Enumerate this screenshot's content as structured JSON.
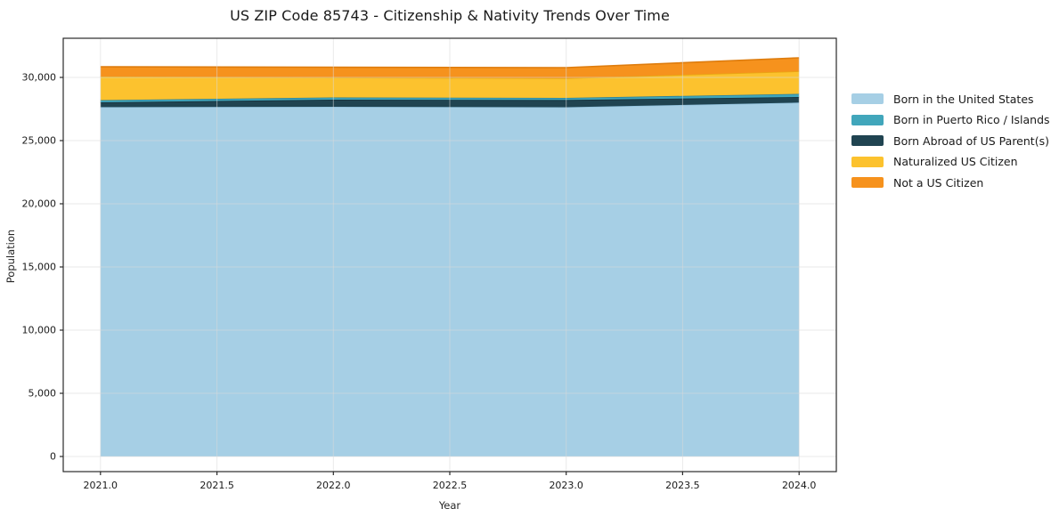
{
  "chart_data": {
    "type": "area",
    "stacked": true,
    "title": "US ZIP Code 85743 - Citizenship & Nativity Trends Over Time",
    "xlabel": "Year",
    "ylabel": "Population",
    "x": [
      2021,
      2022,
      2023,
      2024
    ],
    "series": [
      {
        "id": "born-in-us",
        "name": "Born in the United States",
        "color": "#a6cfe5",
        "edge": "#8fc0db",
        "values": [
          27650,
          27680,
          27640,
          28010
        ]
      },
      {
        "id": "born-pr-islands",
        "name": "Born in Puerto Rico / Islands",
        "color": "#41a6bb",
        "edge": "#2e8096",
        "values": [
          175,
          175,
          170,
          245
        ]
      },
      {
        "id": "born-abroad",
        "name": "Born Abroad of US Parent(s)",
        "color": "#204451",
        "edge": "#152f3a",
        "values": [
          380,
          560,
          570,
          445
        ]
      },
      {
        "id": "naturalized",
        "name": "Naturalized US Citizen",
        "color": "#fcc22e",
        "edge": "#e8a812",
        "values": [
          1865,
          1585,
          1550,
          1790
        ]
      },
      {
        "id": "not-citizen",
        "name": "Not a US Citizen",
        "color": "#f6921d",
        "edge": "#de7c0d",
        "values": [
          775,
          810,
          845,
          1060
        ]
      }
    ],
    "stack_order": [
      "born-in-us",
      "born-abroad",
      "born-pr-islands",
      "naturalized",
      "not-citizen"
    ],
    "xlim": [
      2020.84,
      2024.16
    ],
    "ylim": [
      -1200,
      33100
    ],
    "xticks": {
      "values": [
        2021.0,
        2021.5,
        2022.0,
        2022.5,
        2023.0,
        2023.5,
        2024.0
      ],
      "labels": [
        "2021.0",
        "2021.5",
        "2022.0",
        "2022.5",
        "2023.0",
        "2023.5",
        "2024.0"
      ]
    },
    "yticks": {
      "values": [
        0,
        5000,
        10000,
        15000,
        20000,
        25000,
        30000
      ],
      "labels": [
        "0",
        "5,000",
        "10,000",
        "15,000",
        "20,000",
        "25,000",
        "30,000"
      ]
    },
    "grid": true,
    "legend_position": "right of plot"
  },
  "colors": {
    "background": "#ffffff",
    "grid": "#d9d9d9",
    "spine": "#2a2a2a",
    "tick_text": "#1a1a1a",
    "title_text": "#1a1a1a"
  }
}
